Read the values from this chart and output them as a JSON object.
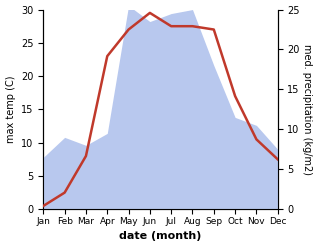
{
  "months": [
    "Jan",
    "Feb",
    "Mar",
    "Apr",
    "May",
    "Jun",
    "Jul",
    "Aug",
    "Sep",
    "Oct",
    "Nov",
    "Dec"
  ],
  "month_x": [
    0,
    1,
    2,
    3,
    4,
    5,
    6,
    7,
    8,
    9,
    10,
    11
  ],
  "temperature": [
    0.5,
    2.5,
    8.0,
    23.0,
    27.0,
    29.5,
    27.5,
    27.5,
    27.0,
    17.0,
    10.5,
    7.5
  ],
  "precipitation": [
    6.5,
    9.0,
    8.0,
    9.5,
    25.5,
    23.5,
    24.5,
    25.0,
    18.0,
    11.5,
    10.5,
    7.5
  ],
  "temp_color": "#c0392b",
  "precip_fill_color": "#b8c8ee",
  "ylabel_left": "max temp (C)",
  "ylabel_right": "med. precipitation (kg/m2)",
  "xlabel": "date (month)",
  "ylim_left": [
    0,
    30
  ],
  "ylim_right": [
    0,
    25
  ],
  "yticks_left": [
    0,
    5,
    10,
    15,
    20,
    25,
    30
  ],
  "yticks_right": [
    0,
    5,
    10,
    15,
    20,
    25
  ],
  "background_color": "#ffffff",
  "line_width": 1.8,
  "figsize": [
    3.18,
    2.47
  ],
  "dpi": 100
}
